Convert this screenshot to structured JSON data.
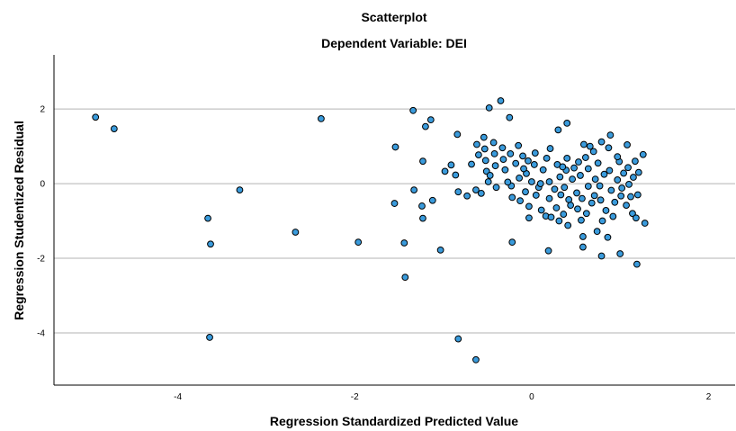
{
  "chart_data": {
    "type": "scatter",
    "title": "Scatterplot",
    "subtitle": "Dependent Variable: DEI",
    "xlabel": "Regression Standardized Predicted Value",
    "ylabel": "Regression Studentized Residual",
    "xlim": [
      -5.4,
      2.3
    ],
    "ylim": [
      -5.4,
      3.45
    ],
    "xticks": [
      -4,
      -2,
      0,
      2
    ],
    "yticks": [
      -4,
      -2,
      0,
      2
    ],
    "grid": "horizontal",
    "marker_color": "#3a9bdc",
    "marker_edge": "#000000",
    "points": [
      {
        "x": -4.93,
        "y": 1.78
      },
      {
        "x": -4.72,
        "y": 1.47
      },
      {
        "x": -3.66,
        "y": -0.93
      },
      {
        "x": -3.63,
        "y": -1.62
      },
      {
        "x": -3.64,
        "y": -4.12
      },
      {
        "x": -3.3,
        "y": -0.17
      },
      {
        "x": -2.67,
        "y": -1.3
      },
      {
        "x": -2.38,
        "y": 1.74
      },
      {
        "x": -1.96,
        "y": -1.57
      },
      {
        "x": -1.54,
        "y": 0.98
      },
      {
        "x": -1.55,
        "y": -0.53
      },
      {
        "x": -1.44,
        "y": -1.59
      },
      {
        "x": -1.43,
        "y": -2.51
      },
      {
        "x": -1.34,
        "y": 1.96
      },
      {
        "x": -1.33,
        "y": -0.17
      },
      {
        "x": -1.23,
        "y": 0.6
      },
      {
        "x": -1.24,
        "y": -0.6
      },
      {
        "x": -1.23,
        "y": -0.93
      },
      {
        "x": -1.2,
        "y": 1.53
      },
      {
        "x": -1.14,
        "y": 1.71
      },
      {
        "x": -1.12,
        "y": -0.45
      },
      {
        "x": -1.03,
        "y": -1.78
      },
      {
        "x": -0.98,
        "y": 0.33
      },
      {
        "x": -0.91,
        "y": 0.5
      },
      {
        "x": -0.86,
        "y": 0.23
      },
      {
        "x": -0.84,
        "y": 1.32
      },
      {
        "x": -0.83,
        "y": -0.22
      },
      {
        "x": -0.83,
        "y": -4.16
      },
      {
        "x": -0.73,
        "y": -0.33
      },
      {
        "x": -0.63,
        "y": -0.17
      },
      {
        "x": -0.63,
        "y": -4.72
      },
      {
        "x": -0.62,
        "y": 1.05
      },
      {
        "x": -0.6,
        "y": 0.77
      },
      {
        "x": -0.57,
        "y": -0.26
      },
      {
        "x": -0.54,
        "y": 1.24
      },
      {
        "x": -0.53,
        "y": 0.93
      },
      {
        "x": -0.52,
        "y": 0.62
      },
      {
        "x": -0.51,
        "y": 0.33
      },
      {
        "x": -0.49,
        "y": 0.05
      },
      {
        "x": -0.48,
        "y": 2.03
      },
      {
        "x": -0.43,
        "y": 1.1
      },
      {
        "x": -0.42,
        "y": 0.8
      },
      {
        "x": -0.41,
        "y": 0.48
      },
      {
        "x": -0.4,
        "y": -0.1
      },
      {
        "x": -0.35,
        "y": 2.22
      },
      {
        "x": -0.33,
        "y": 0.96
      },
      {
        "x": -0.32,
        "y": 0.65
      },
      {
        "x": -0.3,
        "y": 0.37
      },
      {
        "x": -0.25,
        "y": 1.77
      },
      {
        "x": -0.24,
        "y": 0.8
      },
      {
        "x": -0.23,
        "y": -0.06
      },
      {
        "x": -0.22,
        "y": -0.37
      },
      {
        "x": -0.22,
        "y": -1.57
      },
      {
        "x": -0.18,
        "y": 0.54
      },
      {
        "x": -0.15,
        "y": 1.02
      },
      {
        "x": -0.14,
        "y": 0.15
      },
      {
        "x": -0.13,
        "y": -0.46
      },
      {
        "x": -0.1,
        "y": 0.74
      },
      {
        "x": -0.07,
        "y": -0.22
      },
      {
        "x": -0.06,
        "y": 0.27
      },
      {
        "x": -0.04,
        "y": 0.61
      },
      {
        "x": -0.03,
        "y": -0.92
      },
      {
        "x": -0.03,
        "y": -0.61
      },
      {
        "x": 0.0,
        "y": 0.05
      },
      {
        "x": 0.03,
        "y": 0.51
      },
      {
        "x": 0.04,
        "y": 0.82
      },
      {
        "x": 0.05,
        "y": -0.31
      },
      {
        "x": 0.08,
        "y": -0.1
      },
      {
        "x": 0.11,
        "y": -0.71
      },
      {
        "x": 0.13,
        "y": 0.37
      },
      {
        "x": 0.16,
        "y": -0.87
      },
      {
        "x": 0.17,
        "y": 0.68
      },
      {
        "x": 0.19,
        "y": -1.8
      },
      {
        "x": 0.2,
        "y": 0.05
      },
      {
        "x": 0.2,
        "y": -0.4
      },
      {
        "x": 0.21,
        "y": 0.94
      },
      {
        "x": 0.22,
        "y": -0.9
      },
      {
        "x": 0.26,
        "y": -0.15
      },
      {
        "x": 0.28,
        "y": -0.65
      },
      {
        "x": 0.29,
        "y": 0.51
      },
      {
        "x": 0.3,
        "y": 1.44
      },
      {
        "x": 0.31,
        "y": -1.0
      },
      {
        "x": 0.32,
        "y": 0.18
      },
      {
        "x": 0.33,
        "y": -0.3
      },
      {
        "x": 0.36,
        "y": -0.82
      },
      {
        "x": 0.37,
        "y": -0.1
      },
      {
        "x": 0.39,
        "y": 0.36
      },
      {
        "x": 0.4,
        "y": 0.68
      },
      {
        "x": 0.4,
        "y": 1.62
      },
      {
        "x": 0.41,
        "y": -1.12
      },
      {
        "x": 0.42,
        "y": -0.43
      },
      {
        "x": 0.44,
        "y": -0.58
      },
      {
        "x": 0.46,
        "y": 0.12
      },
      {
        "x": 0.48,
        "y": 0.42
      },
      {
        "x": 0.51,
        "y": -0.25
      },
      {
        "x": 0.52,
        "y": -0.68
      },
      {
        "x": 0.55,
        "y": 0.22
      },
      {
        "x": 0.56,
        "y": -0.98
      },
      {
        "x": 0.57,
        "y": -0.4
      },
      {
        "x": 0.58,
        "y": -1.42
      },
      {
        "x": 0.58,
        "y": -1.7
      },
      {
        "x": 0.59,
        "y": 1.05
      },
      {
        "x": 0.61,
        "y": 0.7
      },
      {
        "x": 0.62,
        "y": -0.8
      },
      {
        "x": 0.64,
        "y": -0.07
      },
      {
        "x": 0.64,
        "y": 0.4
      },
      {
        "x": 0.66,
        "y": 1.0
      },
      {
        "x": 0.68,
        "y": -0.52
      },
      {
        "x": 0.7,
        "y": 0.86
      },
      {
        "x": 0.71,
        "y": -0.32
      },
      {
        "x": 0.72,
        "y": 0.12
      },
      {
        "x": 0.74,
        "y": -1.28
      },
      {
        "x": 0.75,
        "y": 0.55
      },
      {
        "x": 0.77,
        "y": -0.06
      },
      {
        "x": 0.78,
        "y": -0.44
      },
      {
        "x": 0.79,
        "y": 1.12
      },
      {
        "x": 0.79,
        "y": -1.94
      },
      {
        "x": 0.8,
        "y": -1.0
      },
      {
        "x": 0.82,
        "y": 0.25
      },
      {
        "x": 0.84,
        "y": -0.72
      },
      {
        "x": 0.86,
        "y": -1.44
      },
      {
        "x": 0.87,
        "y": 0.96
      },
      {
        "x": 0.88,
        "y": 0.35
      },
      {
        "x": 0.89,
        "y": 1.3
      },
      {
        "x": 0.9,
        "y": -0.18
      },
      {
        "x": 0.92,
        "y": -0.88
      },
      {
        "x": 0.94,
        "y": -0.5
      },
      {
        "x": 0.97,
        "y": 0.1
      },
      {
        "x": 0.99,
        "y": 0.59
      },
      {
        "x": 1.0,
        "y": -1.88
      },
      {
        "x": 1.01,
        "y": -0.33
      },
      {
        "x": 1.02,
        "y": -0.12
      },
      {
        "x": 1.04,
        "y": 0.28
      },
      {
        "x": 1.07,
        "y": -0.58
      },
      {
        "x": 1.08,
        "y": 1.04
      },
      {
        "x": 1.09,
        "y": 0.43
      },
      {
        "x": 1.1,
        "y": -0.02
      },
      {
        "x": 1.12,
        "y": -0.35
      },
      {
        "x": 1.14,
        "y": -0.8
      },
      {
        "x": 1.15,
        "y": 0.17
      },
      {
        "x": 1.17,
        "y": 0.6
      },
      {
        "x": 1.18,
        "y": -0.92
      },
      {
        "x": 1.19,
        "y": -2.16
      },
      {
        "x": 1.2,
        "y": -0.3
      },
      {
        "x": 1.21,
        "y": 0.3
      },
      {
        "x": 1.26,
        "y": 0.78
      },
      {
        "x": 1.28,
        "y": -1.06
      },
      {
        "x": -0.68,
        "y": 0.52
      },
      {
        "x": -0.47,
        "y": 0.22
      },
      {
        "x": -0.27,
        "y": 0.04
      },
      {
        "x": -0.09,
        "y": 0.4
      },
      {
        "x": 0.1,
        "y": 0.0
      },
      {
        "x": 0.35,
        "y": 0.45
      },
      {
        "x": 0.53,
        "y": 0.58
      },
      {
        "x": 0.97,
        "y": 0.72
      }
    ]
  }
}
